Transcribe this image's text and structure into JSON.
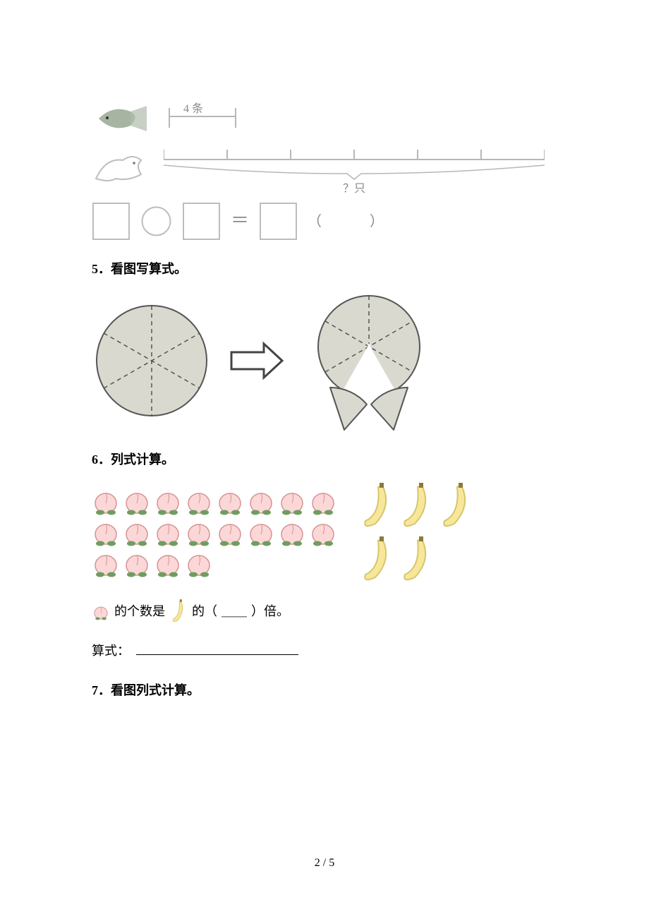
{
  "q4_figure": {
    "fish_bracket_label": "4 条",
    "bird_segments": 6,
    "bird_label": "？只",
    "template_suffix": "（　　　）",
    "equals": "＝",
    "colors": {
      "line": "#b7b7b7",
      "text_gray": "#888888",
      "fish_body": "#9aa59a",
      "bird_outline": "#bdbdbd"
    }
  },
  "q5": {
    "heading": "5．看图写算式。",
    "circle_slices": 6,
    "arrow": "⇒",
    "colors": {
      "circle_fill": "#d9d9cf",
      "circle_line": "#555555",
      "arrow_line": "#444444"
    }
  },
  "q6": {
    "heading": "6．列式计算。",
    "peach_count": 20,
    "banana_count": 5,
    "sentence_prefix": "的个数是",
    "sentence_mid": "的（",
    "sentence_blank": "＿＿",
    "sentence_suffix": "）倍。",
    "formula_label": "算式：",
    "formula_line_width": 230,
    "colors": {
      "peach_fill": "#fcd7d7",
      "peach_leaf": "#6e9e5f",
      "peach_outline": "#d49494",
      "banana_fill": "#f8e79a",
      "banana_outline": "#d6c66a"
    }
  },
  "q7": {
    "heading": "7．看图列式计算。"
  },
  "page": {
    "current": "2",
    "sep": " / ",
    "total": "5"
  }
}
